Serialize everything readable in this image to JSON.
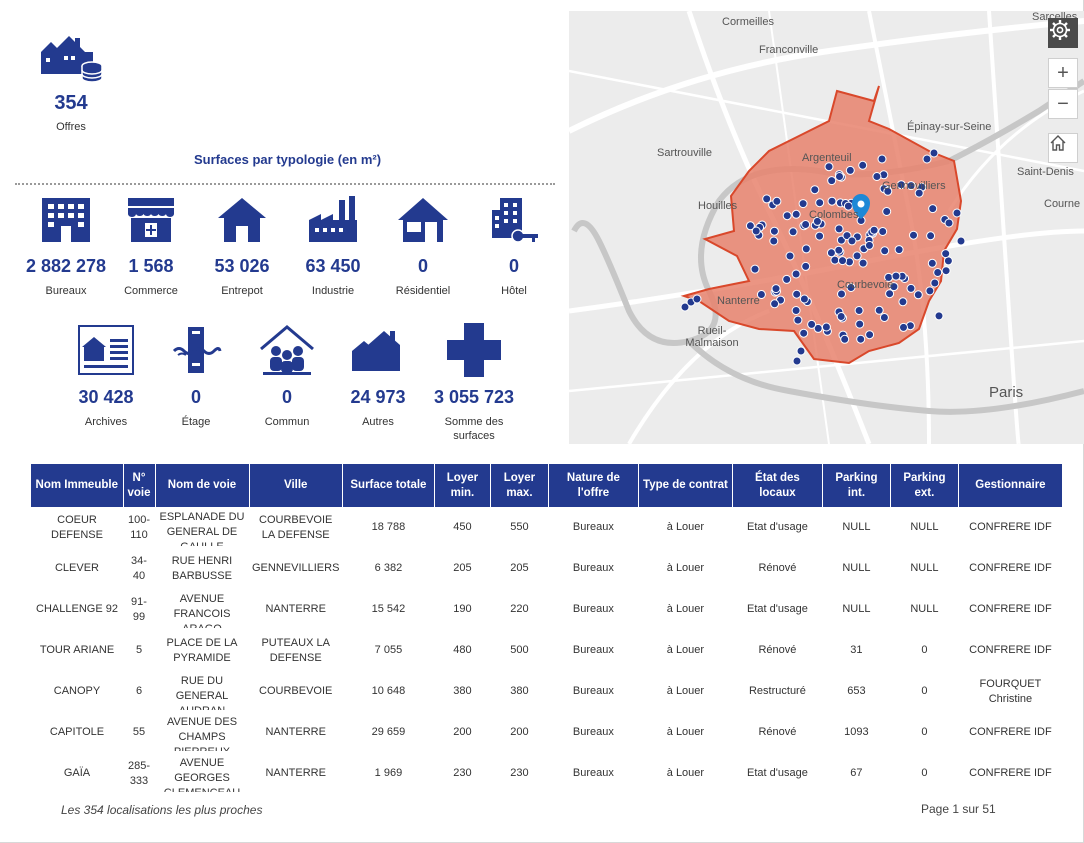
{
  "summary": {
    "offers_value": "354",
    "offers_label": "Offres"
  },
  "section_title": "Surfaces par typologie (en m²)",
  "kpis_row1": [
    {
      "value": "2 882 278",
      "label": "Bureaux",
      "icon": "office-building-icon"
    },
    {
      "value": "1 568",
      "label": "Commerce",
      "icon": "shop-icon"
    },
    {
      "value": "53 026",
      "label": "Entrepot",
      "icon": "warehouse-icon"
    },
    {
      "value": "63 450",
      "label": "Industrie",
      "icon": "factory-icon"
    },
    {
      "value": "0",
      "label": "Résidentiel",
      "icon": "house-icon"
    },
    {
      "value": "0",
      "label": "Hôtel",
      "icon": "hotel-key-icon"
    }
  ],
  "kpis_row2": [
    {
      "value": "30 428",
      "label": "Archives",
      "icon": "archives-icon"
    },
    {
      "value": "0",
      "label": "Étage",
      "icon": "floor-icon"
    },
    {
      "value": "0",
      "label": "Commun",
      "icon": "common-space-icon"
    },
    {
      "value": "24 973",
      "label": "Autres",
      "icon": "other-buildings-icon"
    },
    {
      "value": "3 055 723",
      "label": "Somme des surfaces",
      "icon": "plus-icon"
    }
  ],
  "map": {
    "places": [
      "Cormeilles",
      "Franconville",
      "Épinay-sur-Seine",
      "Sartrouville",
      "Argenteuil",
      "Gennevilliers",
      "Saint-Denis",
      "Houilles",
      "Colombes",
      "Nanterre",
      "Courbevoie",
      "Rueil-Malmaison",
      "Paris",
      "Sarcelles",
      "Courne"
    ],
    "zoom_in": "+",
    "zoom_out": "−",
    "settings_icon": "gear-icon",
    "home_icon": "home-icon",
    "zone_color": "#e8826d",
    "marker_color": "#233a8f"
  },
  "table": {
    "headers": [
      "Nom Immeuble",
      "N° voie",
      "Nom de voie",
      "Ville",
      "Surface totale",
      "Loyer min.",
      "Loyer max.",
      "Nature de l'offre",
      "Type de contrat",
      "État des locaux",
      "Parking int.",
      "Parking ext.",
      "Gestionnaire"
    ],
    "rows": [
      [
        "COEUR DEFENSE",
        "100-110",
        "ESPLANADE DU GENERAL DE GAULLE",
        "COURBEVOIE LA DEFENSE",
        "18 788",
        "450",
        "550",
        "Bureaux",
        "à Louer",
        "Etat d'usage",
        "NULL",
        "NULL",
        "CONFRERE IDF"
      ],
      [
        "CLEVER",
        "34-40",
        "RUE HENRI BARBUSSE",
        "GENNEVILLIERS",
        "6 382",
        "205",
        "205",
        "Bureaux",
        "à Louer",
        "Rénové",
        "NULL",
        "NULL",
        "CONFRERE IDF"
      ],
      [
        "CHALLENGE 92",
        "91-99",
        "AVENUE FRANCOIS ARAGO",
        "NANTERRE",
        "15 542",
        "190",
        "220",
        "Bureaux",
        "à Louer",
        "Etat d'usage",
        "NULL",
        "NULL",
        "CONFRERE IDF"
      ],
      [
        "TOUR ARIANE",
        "5",
        "PLACE DE LA PYRAMIDE",
        "PUTEAUX LA DEFENSE",
        "7 055",
        "480",
        "500",
        "Bureaux",
        "à Louer",
        "Rénové",
        "31",
        "0",
        "CONFRERE IDF"
      ],
      [
        "CANOPY",
        "6",
        "RUE DU GENERAL AUDRAN",
        "COURBEVOIE",
        "10 648",
        "380",
        "380",
        "Bureaux",
        "à Louer",
        "Restructuré",
        "653",
        "0",
        "FOURQUET Christine"
      ],
      [
        "CAPITOLE",
        "55",
        "AVENUE DES CHAMPS PIERREUX",
        "NANTERRE",
        "29 659",
        "200",
        "200",
        "Bureaux",
        "à Louer",
        "Rénové",
        "1093",
        "0",
        "CONFRERE IDF"
      ],
      [
        "GAÏA",
        "285-333",
        "AVENUE GEORGES CLEMENCEAU",
        "NANTERRE",
        "1 969",
        "230",
        "230",
        "Bureaux",
        "à Louer",
        "Etat d'usage",
        "67",
        "0",
        "CONFRERE IDF"
      ]
    ]
  },
  "footer": {
    "locations_text": "Les 354 localisations les plus proches",
    "page_text": "Page 1 sur 51"
  }
}
